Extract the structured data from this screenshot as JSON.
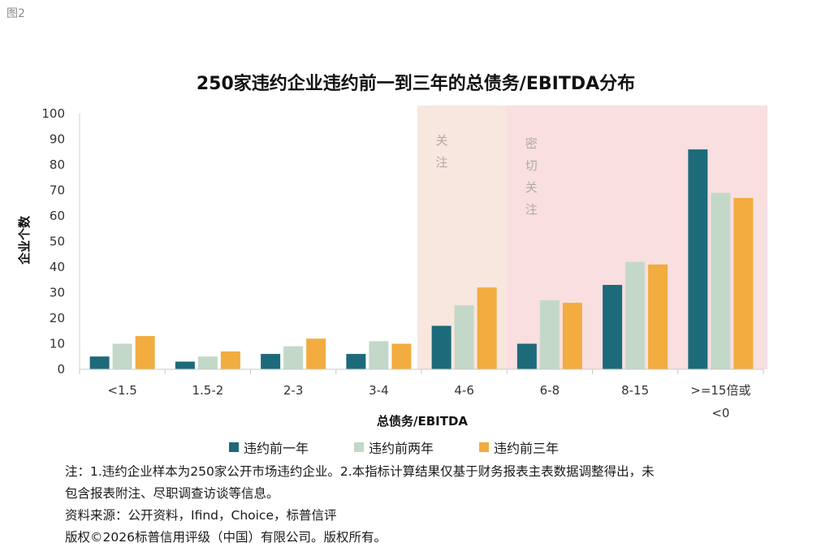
{
  "figure_label": "图2",
  "chart_data": {
    "type": "bar",
    "title": "250家违约企业违约前一到三年的总债务/EBITDA分布",
    "xlabel": "总债务/EBITDA",
    "ylabel": "企业个数",
    "ylim": [
      0,
      100
    ],
    "yticks": [
      0,
      10,
      20,
      30,
      40,
      50,
      60,
      70,
      80,
      90,
      100
    ],
    "grid": false,
    "legend_position": "bottom",
    "categories": [
      "<1.5",
      "1.5-2",
      "2-3",
      "3-4",
      "4-6",
      "6-8",
      "8-15",
      ">=15倍或<0"
    ],
    "category_label_lines": [
      [
        "<1.5"
      ],
      [
        "1.5-2"
      ],
      [
        "2-3"
      ],
      [
        "3-4"
      ],
      [
        "4-6"
      ],
      [
        "6-8"
      ],
      [
        "8-15"
      ],
      [
        ">=15倍或",
        "<0"
      ]
    ],
    "series": [
      {
        "name": "违约前一年",
        "color": "#1d6a7a",
        "values": [
          5,
          3,
          6,
          6,
          17,
          10,
          33,
          86
        ]
      },
      {
        "name": "违约前两年",
        "color": "#c3d8c8",
        "values": [
          10,
          5,
          9,
          11,
          25,
          27,
          42,
          69
        ]
      },
      {
        "name": "违约前三年",
        "color": "#f2ac3f",
        "values": [
          13,
          7,
          12,
          10,
          32,
          26,
          41,
          67
        ]
      }
    ],
    "highlight_zones": [
      {
        "label_chars": [
          "关",
          "注"
        ],
        "category": "4-6",
        "color": "#f8e7df"
      },
      {
        "label_chars": [
          "密",
          "切",
          "关",
          "注"
        ],
        "categories": [
          "6-8",
          "8-15",
          ">=15倍或<0"
        ],
        "color": "#f9dfe0"
      }
    ]
  },
  "notes": [
    "注：1.违约企业样本为250家公开市场违约企业。2.本指标计算结果仅基于财务报表主表数据调整得出，未",
    "包含报表附注、尽职调查访谈等信息。",
    "资料来源：公开资料，Ifind，Choice，标普信评",
    "版权©2026标普信用评级（中国）有限公司。版权所有。"
  ]
}
